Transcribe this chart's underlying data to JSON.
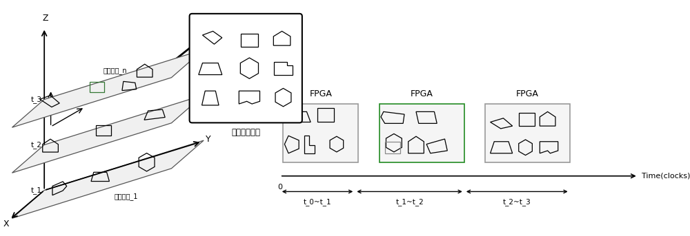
{
  "bg_color": "#ffffff",
  "z_label": "Z",
  "y_label": "Y",
  "x_label": "X",
  "t_labels": [
    "t_3",
    "t_2",
    "t_1"
  ],
  "task_set_n": "任务子集_n",
  "task_set_1": "任务子集_1",
  "reconf_label": "可重构任务集",
  "fpga_label": "FPGA",
  "time_clocks": "Time(clocks)",
  "time_intervals": [
    "t_0~t_1",
    "t_1~t_2",
    "t_2~t_3"
  ],
  "origin_label": "0",
  "fpga_border_colors": [
    "#999999",
    "#228B22",
    "#999999"
  ],
  "axis_color": "#000000",
  "plane_color": "#555555",
  "plane_face": "#f0f0f0"
}
